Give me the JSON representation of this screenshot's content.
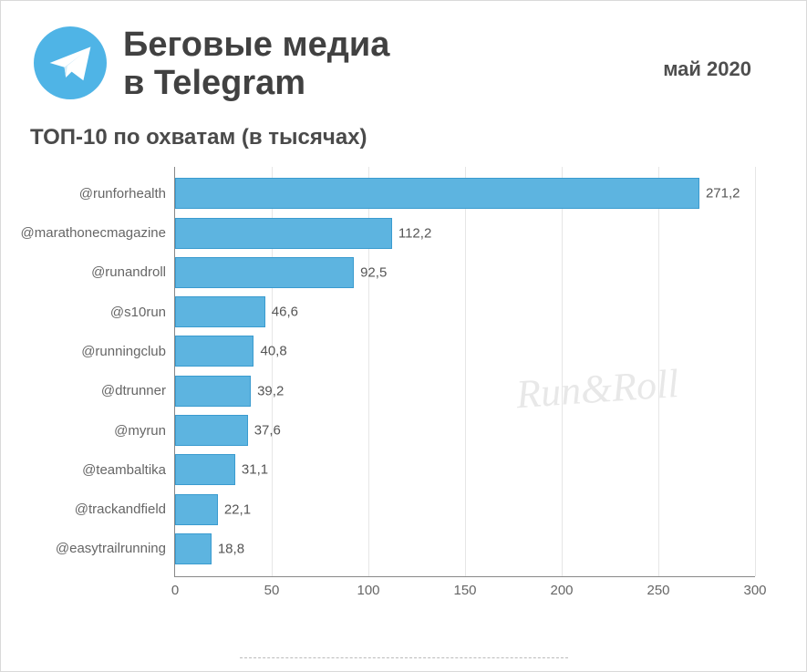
{
  "header": {
    "title_line1": "Беговые медиа",
    "title_line2": "в Telegram",
    "date": "май 2020"
  },
  "subtitle": "ТОП-10 по охватам (в тысячах)",
  "chart": {
    "type": "bar-horizontal",
    "xlim": [
      0,
      300
    ],
    "xtick_step": 50,
    "xticks": [
      0,
      50,
      100,
      150,
      200,
      250,
      300
    ],
    "bar_color": "#5db4e0",
    "bar_border_color": "#3a9bcf",
    "grid_color": "#e6e6e6",
    "axis_color": "#888888",
    "label_color": "#666666",
    "value_color": "#555555",
    "label_fontsize": 15,
    "value_fontsize": 15,
    "categories": [
      "@runforhealth",
      "@marathonecmagazine",
      "@runandroll",
      "@s10run",
      "@runningclub",
      "@dtrunner",
      "@myrun",
      "@teambaltika",
      "@trackandfield",
      "@easytrailrunning"
    ],
    "values": [
      271.2,
      112.2,
      92.5,
      46.6,
      40.8,
      39.2,
      37.6,
      31.1,
      22.1,
      18.8
    ],
    "value_labels": [
      "271,2",
      "112,2",
      "92,5",
      "46,6",
      "40,8",
      "39,2",
      "37,6",
      "31,1",
      "22,1",
      "18,8"
    ]
  },
  "watermark": "Run&Roll",
  "colors": {
    "background": "#ffffff",
    "title_text": "#414141",
    "subtitle_text": "#4a4a4a",
    "date_text": "#4e4e4e",
    "icon_bg": "#4fb4e6",
    "icon_fg": "#ffffff"
  }
}
